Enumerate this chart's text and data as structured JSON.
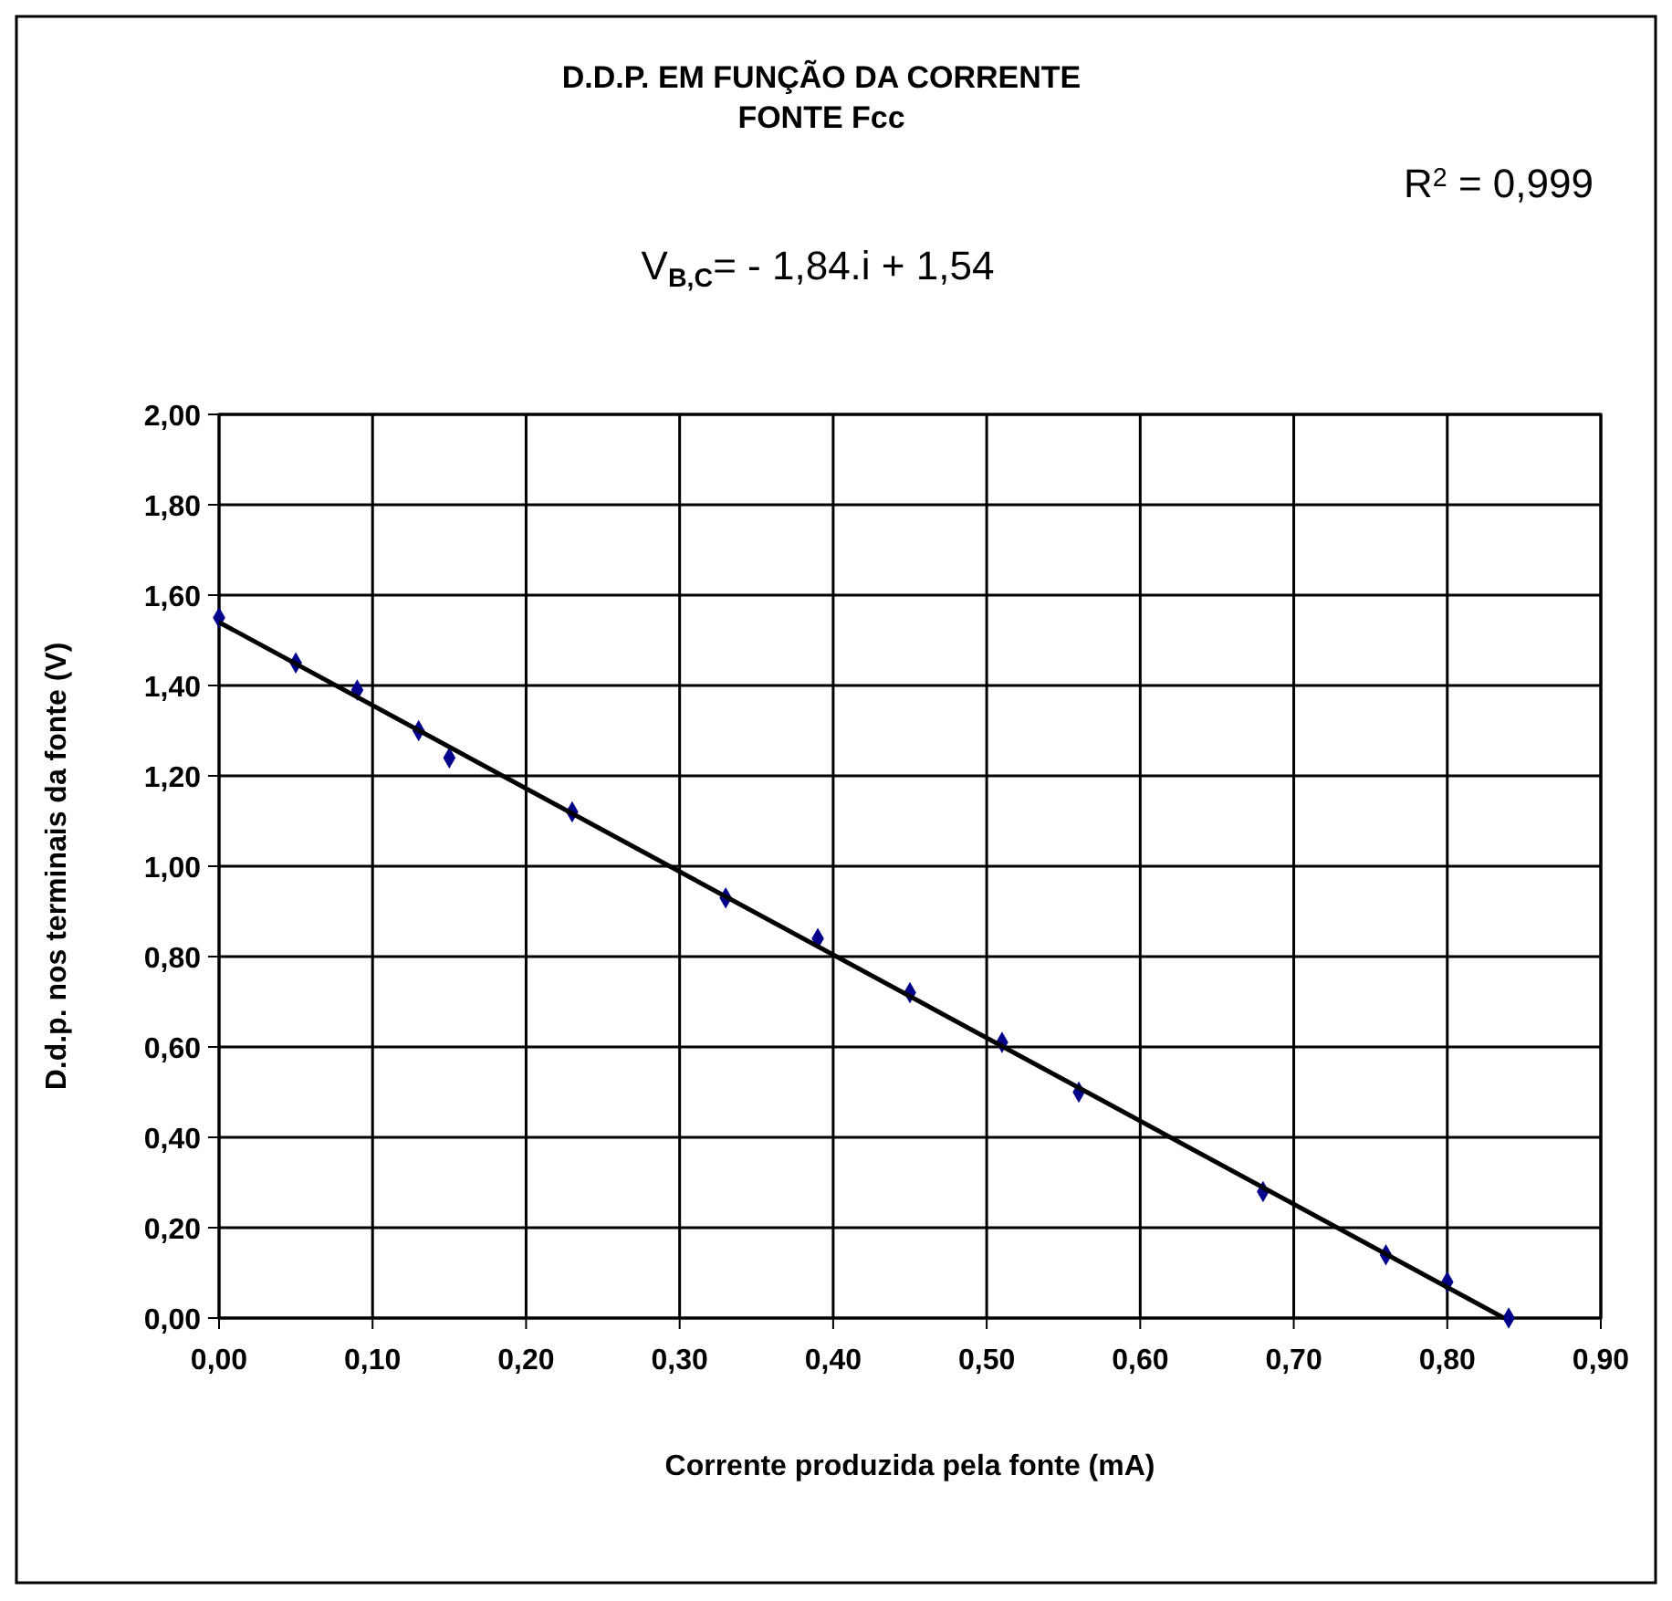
{
  "chart_data": {
    "type": "scatter",
    "title": "D.D.P. EM FUNÇÃO DA CORRENTE\nFONTE  Fcc",
    "xlabel": "Corrente produzida pela fonte (mA)",
    "ylabel": "D.d.p. nos terminais da fonte (V)",
    "annotations": [
      "V$_{B,C}$= - 1,84.i + 1,54",
      "R$^{2}$ = 0,999"
    ],
    "series": [
      {
        "color": "#00008b",
        "marker": "diamond",
        "x": [
          0.0,
          0.05,
          0.09,
          0.13,
          0.15,
          0.23,
          0.33,
          0.39,
          0.45,
          0.51,
          0.56,
          0.68,
          0.76,
          0.8,
          0.84
        ],
        "values": [
          1.55,
          1.45,
          1.39,
          1.3,
          1.24,
          1.12,
          0.93,
          0.84,
          0.72,
          0.61,
          0.5,
          0.28,
          0.14,
          0.08,
          0.0
        ]
      },
      {
        "type": "line",
        "color": "#000000",
        "marker": "none",
        "line_style": "solid",
        "x": [
          0,
          0.837
        ],
        "values": [
          1.54,
          0.0
        ]
      }
    ],
    "xlim": [
      0,
      0.9
    ],
    "xticks": [
      {
        "value": 0,
        "label": "0,00"
      },
      {
        "value": 0.1,
        "label": "0,10"
      },
      {
        "value": 0.2,
        "label": "0,20"
      },
      {
        "value": 0.3,
        "label": "0,30"
      },
      {
        "value": 0.4,
        "label": "0,40"
      },
      {
        "value": 0.5,
        "label": "0,50"
      },
      {
        "value": 0.6,
        "label": "0,60"
      },
      {
        "value": 0.7,
        "label": "0,70"
      },
      {
        "value": 0.8,
        "label": "0,80"
      },
      {
        "value": 0.9,
        "label": "0,90"
      }
    ],
    "ylim": [
      0,
      2
    ],
    "yticks": [
      {
        "value": 0,
        "label": "0,00"
      },
      {
        "value": 0.2,
        "label": "0,20"
      },
      {
        "value": 0.4,
        "label": "0,40"
      },
      {
        "value": 0.6,
        "label": "0,60"
      },
      {
        "value": 0.8,
        "label": "0,80"
      },
      {
        "value": 1,
        "label": "1,00"
      },
      {
        "value": 1.2,
        "label": "1,20"
      },
      {
        "value": 1.4,
        "label": "1,40"
      },
      {
        "value": 1.6,
        "label": "1,60"
      },
      {
        "value": 1.8,
        "label": "1,80"
      },
      {
        "value": 2,
        "label": "2,00"
      }
    ],
    "grid": true
  }
}
